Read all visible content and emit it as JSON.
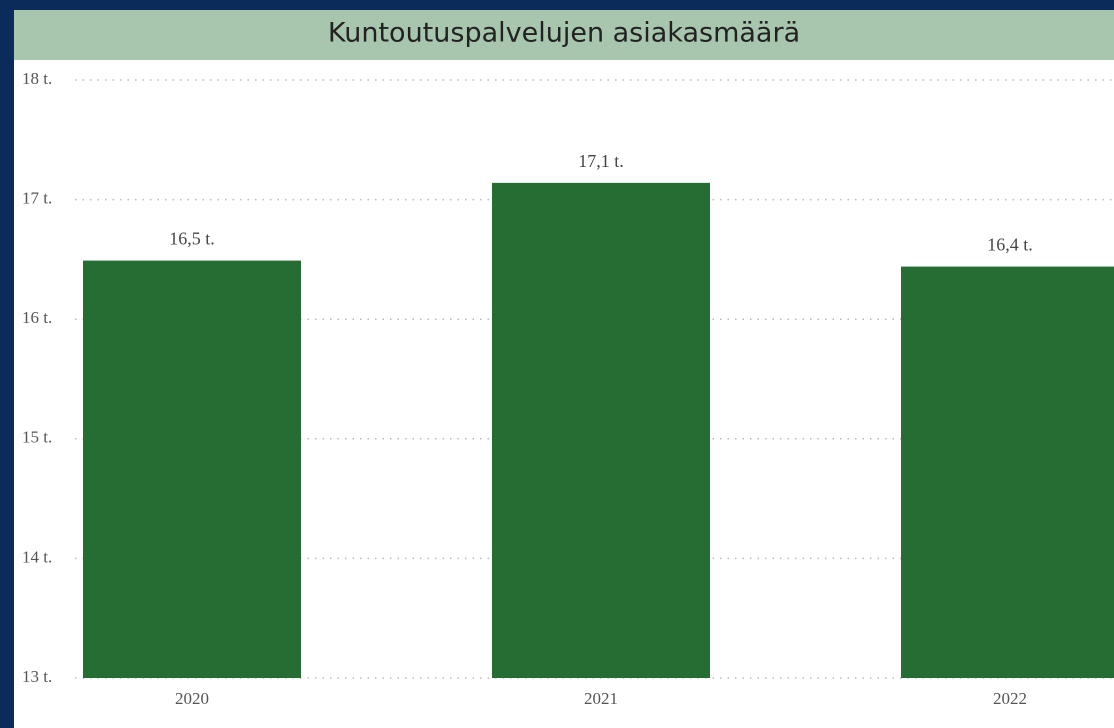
{
  "chart_data": {
    "type": "bar",
    "title": "Kuntoutuspalvelujen asiakasmäärä",
    "categories": [
      "2020",
      "2021",
      "2022"
    ],
    "values": [
      16.49,
      17.14,
      16.44
    ],
    "value_labels": [
      "16,5 t.",
      "17,1 t.",
      "16,4 t."
    ],
    "color": "#256d33",
    "ylim": [
      13,
      18
    ],
    "yticks": [
      {
        "value": 13,
        "label": "13 t."
      },
      {
        "value": 14,
        "label": "14 t."
      },
      {
        "value": 15,
        "label": "15 t."
      },
      {
        "value": 16,
        "label": "16 t."
      },
      {
        "value": 17,
        "label": "17 t."
      },
      {
        "value": 18,
        "label": "18 t."
      }
    ],
    "grid": true
  }
}
